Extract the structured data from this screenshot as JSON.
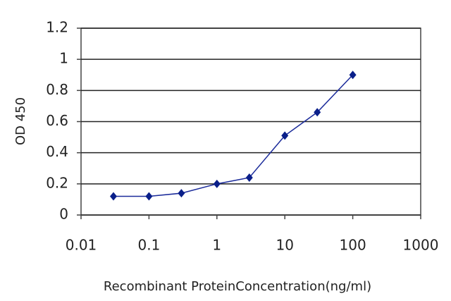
{
  "chart_data": {
    "type": "line",
    "x": [
      0.03,
      0.1,
      0.3,
      1,
      3,
      10,
      30,
      100
    ],
    "values": [
      0.12,
      0.12,
      0.14,
      0.2,
      0.24,
      0.51,
      0.66,
      0.9
    ],
    "color": "#1a2a9a",
    "xlabel": "Recombinant ProteinConcentration(ng/ml)",
    "ylabel": "OD 450",
    "xscale": "log",
    "xlim": [
      0.01,
      1000
    ],
    "xticks": [
      0.01,
      0.1,
      1,
      10,
      100,
      1000
    ],
    "ylim": [
      0,
      1.2
    ],
    "yticks": [
      0,
      0.2,
      0.4,
      0.6,
      0.8,
      1,
      1.2
    ],
    "grid": true
  }
}
